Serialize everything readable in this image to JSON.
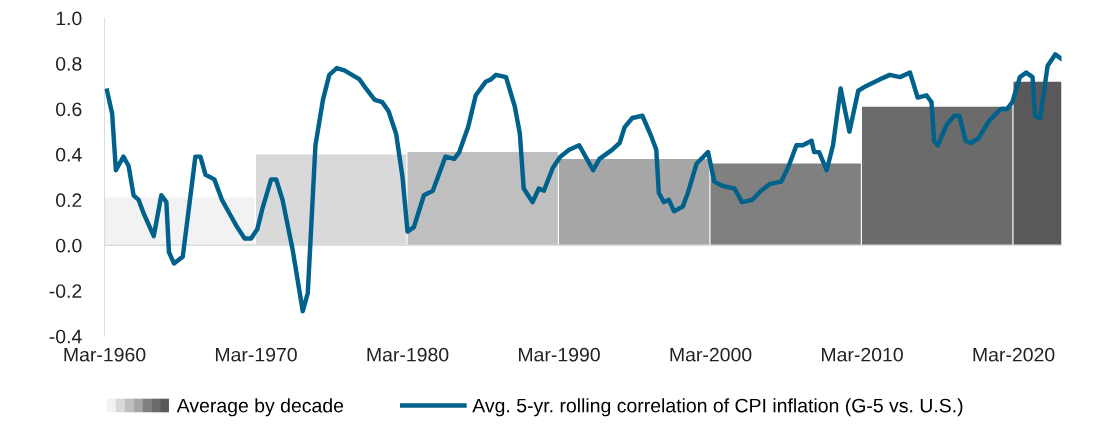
{
  "chart_data": {
    "type": "line",
    "xlim": [
      "1960-03",
      "2023-05"
    ],
    "xticks": [
      {
        "value": "1960-03",
        "label": "Mar-1960"
      },
      {
        "value": "1970-03",
        "label": "Mar-1970"
      },
      {
        "value": "1980-03",
        "label": "Mar-1980"
      },
      {
        "value": "1990-03",
        "label": "Mar-1990"
      },
      {
        "value": "2000-03",
        "label": "Mar-2000"
      },
      {
        "value": "2010-03",
        "label": "Mar-2010"
      },
      {
        "value": "2020-03",
        "label": "Mar-2020"
      }
    ],
    "ylim": [
      -0.4,
      1.0
    ],
    "yticks": [
      {
        "value": -0.4,
        "label": "-0.4"
      },
      {
        "value": -0.2,
        "label": "-0.2"
      },
      {
        "value": 0,
        "label": "0.0"
      },
      {
        "value": 0.2,
        "label": "0.2"
      },
      {
        "value": 0.4,
        "label": "0.4"
      },
      {
        "value": 0.6,
        "label": "0.6"
      },
      {
        "value": 0.8,
        "label": "0.8"
      },
      {
        "value": 1.0,
        "label": "1.0"
      }
    ],
    "legend": "bottom",
    "annotations": [
      "Average by decade"
    ],
    "series": [
      {
        "type": "area",
        "color": "#f2f2f2",
        "x": [
          "1960-03",
          "1970-02"
        ],
        "values": [
          0.21,
          0.21
        ]
      },
      {
        "type": "area",
        "color": "#d9d9d9",
        "x": [
          "1970-03",
          "1980-02"
        ],
        "values": [
          0.4,
          0.4
        ]
      },
      {
        "type": "area",
        "color": "#bfbfbf",
        "x": [
          "1980-03",
          "1990-02"
        ],
        "values": [
          0.41,
          0.41
        ]
      },
      {
        "type": "area",
        "color": "#a6a6a6",
        "x": [
          "1990-03",
          "2000-02"
        ],
        "values": [
          0.38,
          0.38
        ]
      },
      {
        "type": "area",
        "color": "#808080",
        "x": [
          "2000-03",
          "2010-02"
        ],
        "values": [
          0.36,
          0.36
        ]
      },
      {
        "type": "area",
        "color": "#6b6b6b",
        "x": [
          "2010-03",
          "2020-02"
        ],
        "values": [
          0.61,
          0.61
        ]
      },
      {
        "type": "area",
        "color": "#595959",
        "x": [
          "2020-03",
          "2023-05"
        ],
        "values": [
          0.72,
          0.72
        ]
      },
      {
        "name": "Avg. 5-yr. rolling correlation of CPI inflation (G-5 vs. U.S.)",
        "color": "#00628b",
        "x": [
          "1960-05",
          "1960-09",
          "1960-12",
          "1961-06",
          "1961-10",
          "1962-02",
          "1962-06",
          "1962-10",
          "1963-06",
          "1963-12",
          "1964-04",
          "1964-06",
          "1964-10",
          "1965-05",
          "1966-03",
          "1966-07",
          "1966-11",
          "1967-06",
          "1967-12",
          "1968-07",
          "1968-12",
          "1969-06",
          "1969-11",
          "1970-04",
          "1970-08",
          "1971-03",
          "1971-07",
          "1971-12",
          "1972-08",
          "1973-04",
          "1973-08",
          "1974-02",
          "1974-08",
          "1975-01",
          "1975-07",
          "1976-01",
          "1977-01",
          "1977-06",
          "1978-01",
          "1978-07",
          "1978-12",
          "1979-06",
          "1979-11",
          "1980-03",
          "1980-08",
          "1981-04",
          "1981-11",
          "1982-09",
          "1983-04",
          "1983-08",
          "1984-03",
          "1984-09",
          "1985-05",
          "1985-09",
          "1986-01",
          "1986-09",
          "1987-04",
          "1987-08",
          "1987-11",
          "1988-06",
          "1988-11",
          "1989-03",
          "1989-10",
          "1990-04",
          "1990-11",
          "1991-07",
          "1991-12",
          "1992-06",
          "1992-11",
          "1993-09",
          "1994-03",
          "1994-07",
          "1995-01",
          "1995-09",
          "1996-04",
          "1996-08",
          "1996-10",
          "1997-02",
          "1997-06",
          "1997-10",
          "1998-05",
          "1998-09",
          "1999-04",
          "2000-01",
          "2000-06",
          "2001-01",
          "2001-10",
          "2002-04",
          "2002-12",
          "2003-07",
          "2004-02",
          "2004-11",
          "2005-05",
          "2005-11",
          "2006-04",
          "2006-11",
          "2007-01",
          "2007-05",
          "2007-11",
          "2008-04",
          "2008-10",
          "2009-05",
          "2009-12",
          "2010-06",
          "2011-05",
          "2012-01",
          "2012-09",
          "2013-05",
          "2013-11",
          "2014-06",
          "2014-10",
          "2014-12",
          "2015-03",
          "2015-10",
          "2016-04",
          "2016-08",
          "2017-01",
          "2017-05",
          "2017-11",
          "2018-08",
          "2019-05",
          "2019-10",
          "2020-02",
          "2020-08",
          "2021-01",
          "2021-06",
          "2021-08",
          "2021-12",
          "2022-06",
          "2022-12",
          "2023-05"
        ],
        "values": [
          0.68,
          0.58,
          0.33,
          0.39,
          0.35,
          0.22,
          0.2,
          0.14,
          0.04,
          0.22,
          0.19,
          -0.03,
          -0.08,
          -0.05,
          0.39,
          0.39,
          0.31,
          0.29,
          0.2,
          0.13,
          0.08,
          0.03,
          0.03,
          0.07,
          0.16,
          0.29,
          0.29,
          0.2,
          -0.02,
          -0.29,
          -0.21,
          0.44,
          0.64,
          0.75,
          0.78,
          0.77,
          0.73,
          0.69,
          0.64,
          0.63,
          0.59,
          0.49,
          0.3,
          0.06,
          0.08,
          0.22,
          0.24,
          0.39,
          0.38,
          0.41,
          0.52,
          0.66,
          0.72,
          0.73,
          0.75,
          0.74,
          0.61,
          0.49,
          0.25,
          0.19,
          0.25,
          0.24,
          0.34,
          0.39,
          0.42,
          0.44,
          0.39,
          0.33,
          0.38,
          0.42,
          0.45,
          0.52,
          0.56,
          0.57,
          0.48,
          0.42,
          0.23,
          0.19,
          0.2,
          0.15,
          0.17,
          0.23,
          0.36,
          0.41,
          0.28,
          0.26,
          0.25,
          0.19,
          0.2,
          0.24,
          0.27,
          0.28,
          0.35,
          0.44,
          0.44,
          0.46,
          0.41,
          0.41,
          0.33,
          0.44,
          0.69,
          0.5,
          0.68,
          0.7,
          0.73,
          0.75,
          0.74,
          0.76,
          0.65,
          0.66,
          0.63,
          0.46,
          0.44,
          0.53,
          0.57,
          0.57,
          0.46,
          0.45,
          0.47,
          0.55,
          0.6,
          0.6,
          0.63,
          0.74,
          0.76,
          0.74,
          0.57,
          0.56,
          0.79,
          0.84,
          0.82
        ]
      }
    ]
  }
}
